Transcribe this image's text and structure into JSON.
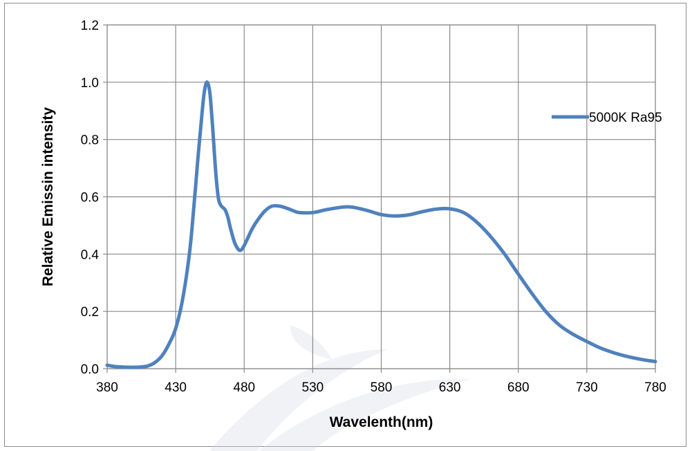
{
  "chart_data": {
    "type": "line",
    "title": "",
    "xlabel": "Wavelenth(nm)",
    "ylabel": "Relative Emissin intensity",
    "xlim": [
      380,
      780
    ],
    "ylim": [
      0,
      1.2
    ],
    "x_ticks": [
      380,
      430,
      480,
      530,
      580,
      630,
      680,
      730,
      780
    ],
    "x_tick_labels": [
      "380",
      "430",
      "480",
      "530",
      "580",
      "630",
      "680",
      "730",
      "780"
    ],
    "y_ticks": [
      0,
      0.2,
      0.4,
      0.6,
      0.8,
      1.0,
      1.2
    ],
    "y_tick_labels": [
      "0.0",
      "0.2",
      "0.4",
      "0.6",
      "0.8",
      "1.0",
      "1.2"
    ],
    "grid": true,
    "legend_position": "right",
    "series": [
      {
        "name": "5000K Ra95",
        "color": "#4f81bd",
        "x": [
          380,
          385,
          390,
          395,
          400,
          405,
          410,
          415,
          420,
          425,
          430,
          435,
          440,
          443,
          446,
          449,
          451,
          453,
          455,
          457,
          459,
          461,
          463,
          466,
          468,
          470,
          473,
          476,
          478,
          480,
          483,
          486,
          490,
          495,
          500,
          505,
          510,
          515,
          520,
          530,
          540,
          550,
          555,
          560,
          570,
          580,
          590,
          600,
          610,
          620,
          630,
          640,
          650,
          660,
          670,
          680,
          690,
          700,
          710,
          720,
          730,
          740,
          750,
          760,
          770,
          780
        ],
        "y": [
          0.012,
          0.008,
          0.006,
          0.005,
          0.005,
          0.006,
          0.01,
          0.022,
          0.045,
          0.085,
          0.14,
          0.24,
          0.4,
          0.55,
          0.72,
          0.88,
          0.97,
          1.0,
          0.96,
          0.84,
          0.7,
          0.6,
          0.57,
          0.555,
          0.53,
          0.49,
          0.44,
          0.415,
          0.415,
          0.43,
          0.46,
          0.49,
          0.52,
          0.55,
          0.567,
          0.568,
          0.562,
          0.553,
          0.545,
          0.545,
          0.555,
          0.563,
          0.565,
          0.563,
          0.552,
          0.538,
          0.533,
          0.537,
          0.548,
          0.557,
          0.558,
          0.545,
          0.51,
          0.46,
          0.4,
          0.33,
          0.262,
          0.2,
          0.152,
          0.12,
          0.095,
          0.072,
          0.055,
          0.042,
          0.032,
          0.025
        ]
      }
    ]
  }
}
